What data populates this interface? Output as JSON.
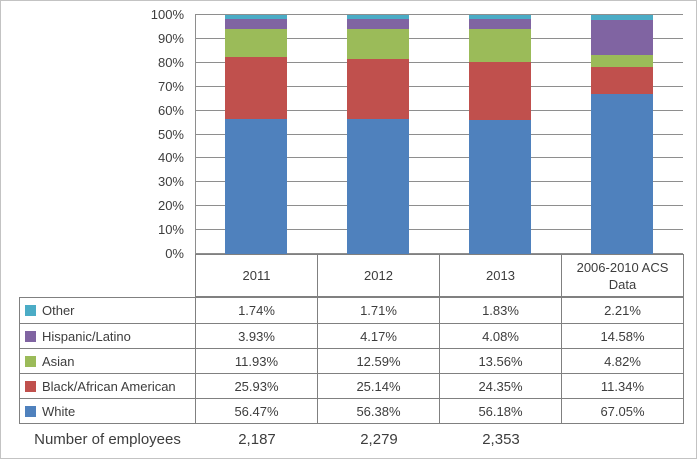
{
  "chart_data": {
    "type": "bar",
    "subtype": "stacked-100-percent-column",
    "title": "",
    "xlabel": "",
    "ylabel": "",
    "ylim": [
      0,
      100
    ],
    "grid": true,
    "legend_position": "left-table",
    "y_ticks": [
      "0%",
      "10%",
      "20%",
      "30%",
      "40%",
      "50%",
      "60%",
      "70%",
      "80%",
      "90%",
      "100%"
    ],
    "categories": [
      "2011",
      "2012",
      "2013",
      "2006-2010 ACS Data"
    ],
    "series": [
      {
        "name": "Other",
        "color": "#4BACC6",
        "values": [
          1.74,
          1.71,
          1.83,
          2.21
        ]
      },
      {
        "name": "Hispanic/Latino",
        "color": "#8064A2",
        "values": [
          3.93,
          4.17,
          4.08,
          14.58
        ]
      },
      {
        "name": "Asian",
        "color": "#9BBB59",
        "values": [
          11.93,
          12.59,
          13.56,
          4.82
        ]
      },
      {
        "name": "Black/African American",
        "color": "#C0504D",
        "values": [
          25.93,
          25.14,
          24.35,
          11.34
        ]
      },
      {
        "name": "White",
        "color": "#4F81BD",
        "values": [
          56.47,
          56.38,
          56.18,
          67.05
        ]
      }
    ],
    "stack_order_bottom_to_top": [
      "White",
      "Black/African American",
      "Asian",
      "Hispanic/Latino",
      "Other"
    ]
  },
  "data_table": {
    "header": [
      "2011",
      "2012",
      "2013",
      "2006-2010 ACS Data"
    ],
    "rows": [
      {
        "label": "Other",
        "swatch": "#4BACC6",
        "values": [
          "1.74%",
          "1.71%",
          "1.83%",
          "2.21%"
        ]
      },
      {
        "label": "Hispanic/Latino",
        "swatch": "#8064A2",
        "values": [
          "3.93%",
          "4.17%",
          "4.08%",
          "14.58%"
        ]
      },
      {
        "label": "Asian",
        "swatch": "#9BBB59",
        "values": [
          "11.93%",
          "12.59%",
          "13.56%",
          "4.82%"
        ]
      },
      {
        "label": "Black/African American",
        "swatch": "#C0504D",
        "values": [
          "25.93%",
          "25.14%",
          "24.35%",
          "11.34%"
        ]
      },
      {
        "label": "White",
        "swatch": "#4F81BD",
        "values": [
          "56.47%",
          "56.38%",
          "56.18%",
          "67.05%"
        ]
      }
    ],
    "footer": {
      "label": "Number of employees",
      "values": [
        "2,187",
        "2,279",
        "2,353",
        ""
      ]
    }
  },
  "styles": {
    "gridline_color": "#8e8e8e",
    "table_border_color": "#808080",
    "text_color": "#3d3d3d",
    "background": "#ffffff"
  }
}
